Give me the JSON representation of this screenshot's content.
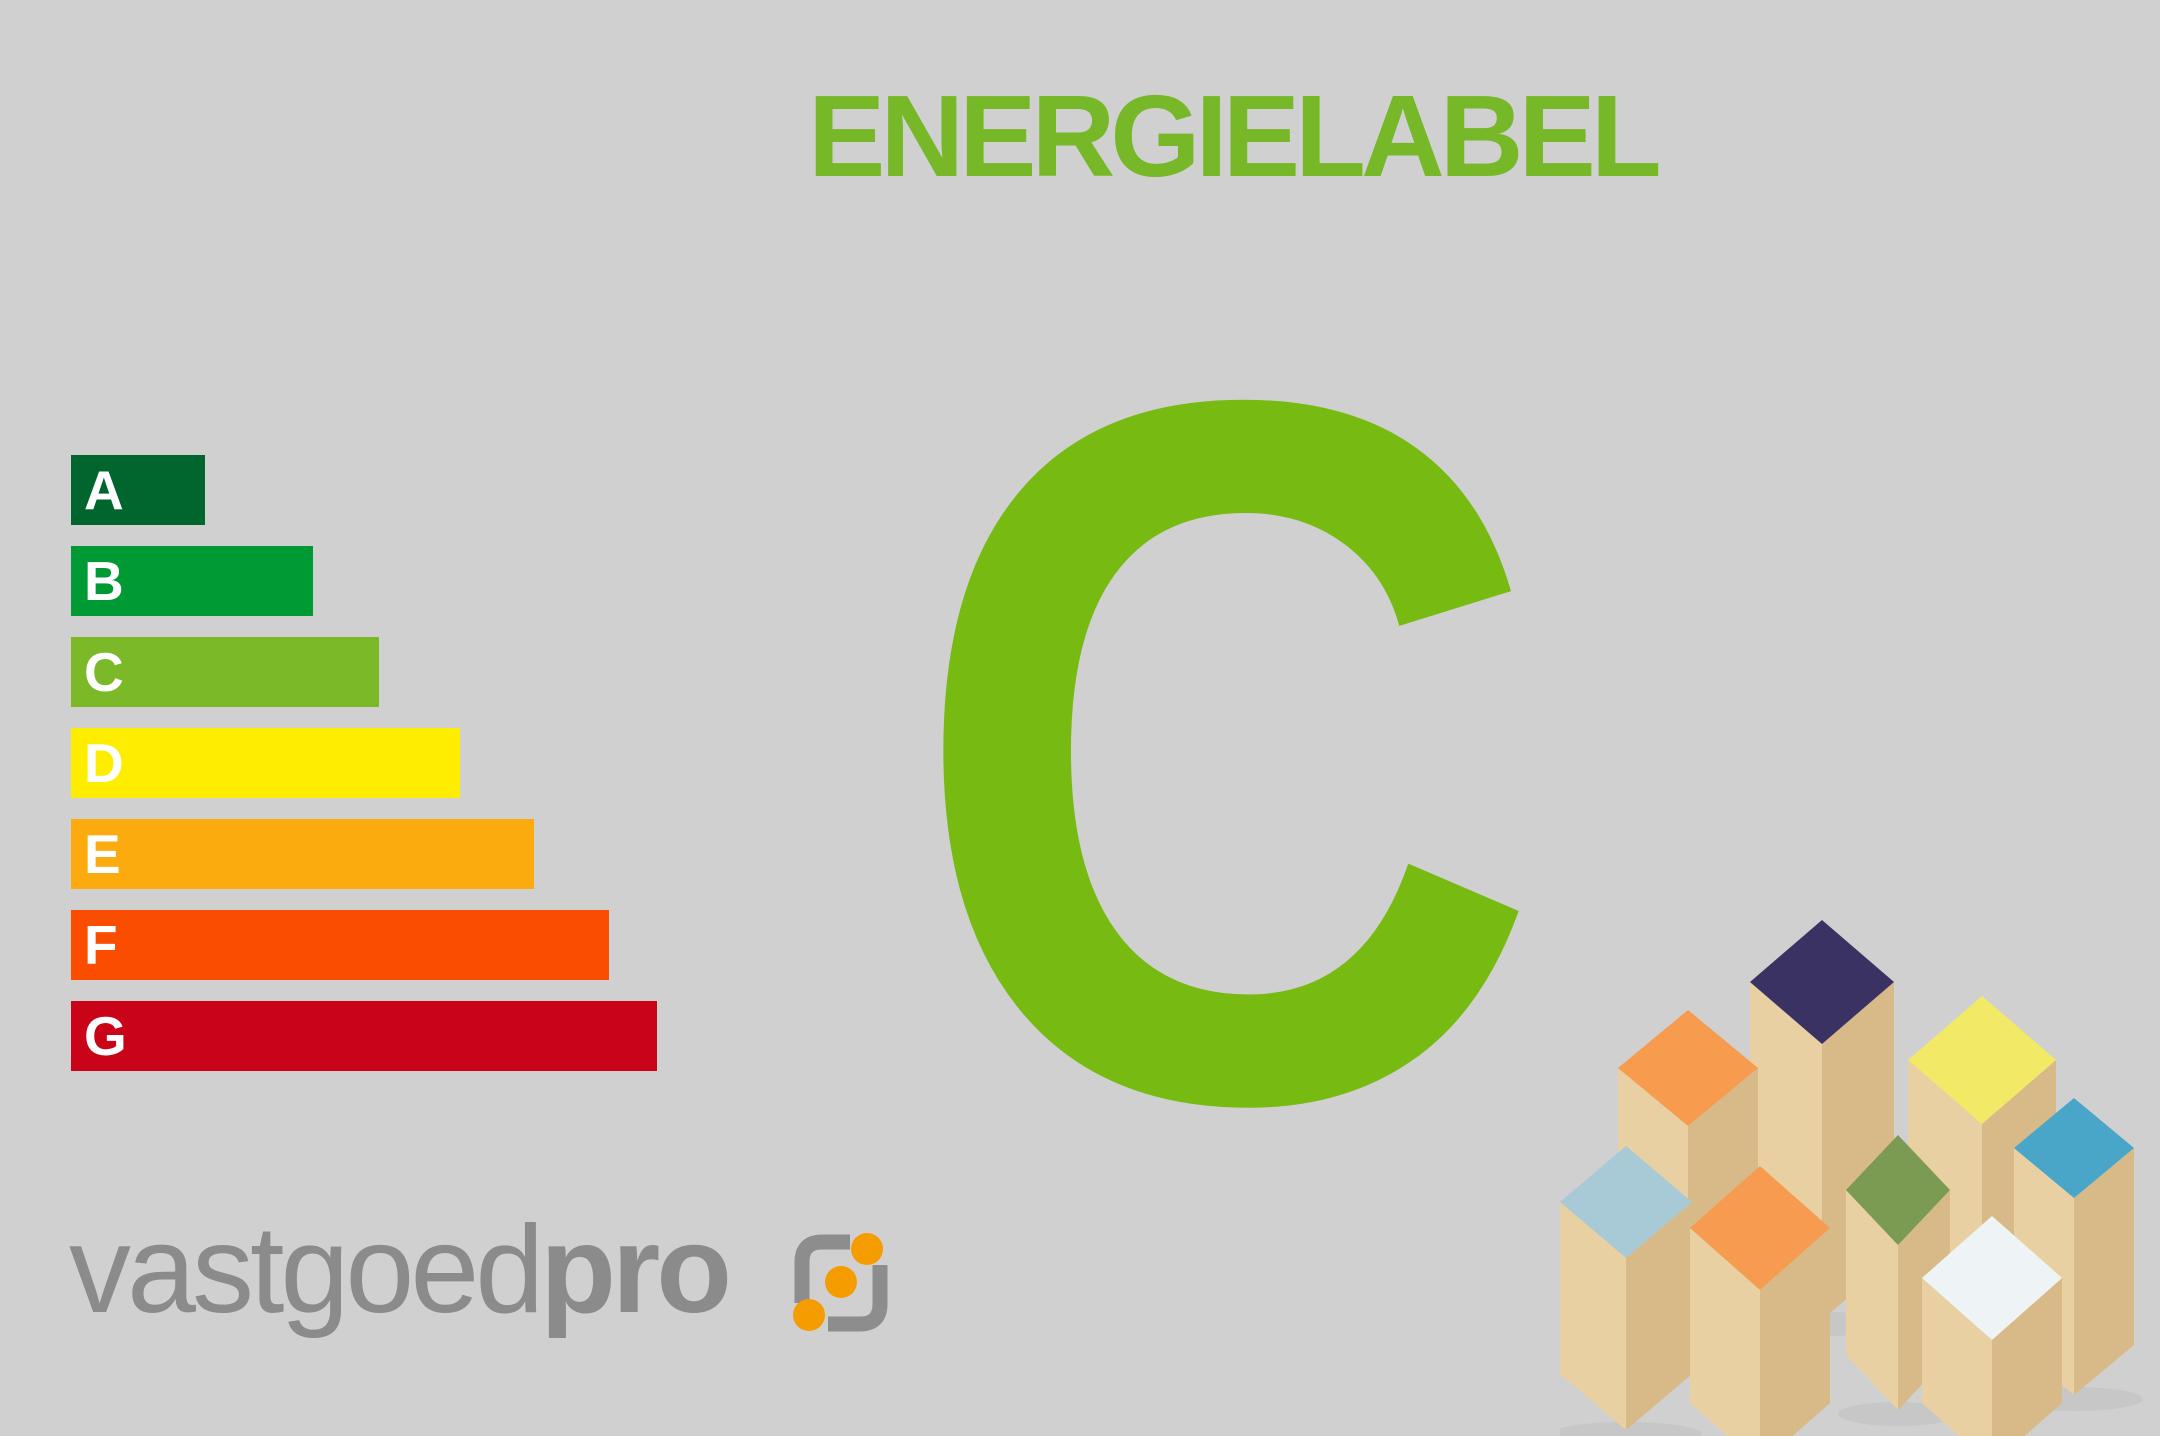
{
  "page": {
    "background_color": "#d0d0d0"
  },
  "title": {
    "text": "ENERGIELABEL",
    "color": "#76b828"
  },
  "rating": {
    "letter": "C",
    "color": "#77ba12"
  },
  "chart_data": {
    "type": "bar",
    "orientation": "horizontal",
    "title": "ENERGIELABEL",
    "selected_rating": "C",
    "categories": [
      "A",
      "B",
      "C",
      "D",
      "E",
      "F",
      "G"
    ],
    "values": [
      134,
      242,
      308,
      389,
      463,
      538,
      586
    ],
    "value_unit": "bar length in px (relative energy-class scale)",
    "colors": [
      "#00662e",
      "#009a34",
      "#7cb928",
      "#ffed00",
      "#fbab0e",
      "#fa4d00",
      "#c90418"
    ],
    "bar_label_color": "#ffffff",
    "axes": "none",
    "grid": false,
    "legend": "none"
  },
  "logo": {
    "text_light": "vastgoed",
    "text_bold": "pro",
    "text_color": "#8b8b8b",
    "icon": {
      "name": "vastgoedpro-swirl-icon",
      "gray": "#8d8d8d",
      "orange": "#f59c00"
    }
  },
  "houses": {
    "description": "wooden toy block houses photo",
    "wood_front": "#e8d0a2",
    "wood_side": "#d7ba88",
    "shadow": "#bdbdbd",
    "roofs": [
      {
        "name": "navy-roof-back-center",
        "color": "#3a3263"
      },
      {
        "name": "orange-roof-back-left",
        "color": "#f79b4f"
      },
      {
        "name": "yellow-roof-back-right",
        "color": "#f2ea66"
      },
      {
        "name": "lightblue-roof-mid-left",
        "color": "#a8c9d6"
      },
      {
        "name": "green-roof-center",
        "color": "#7b9a52"
      },
      {
        "name": "blue-roof-right",
        "color": "#4aa6c8"
      },
      {
        "name": "orange-roof-mid-left",
        "color": "#f79b50"
      },
      {
        "name": "white-roof-front-right",
        "color": "#eef4f6"
      }
    ]
  }
}
